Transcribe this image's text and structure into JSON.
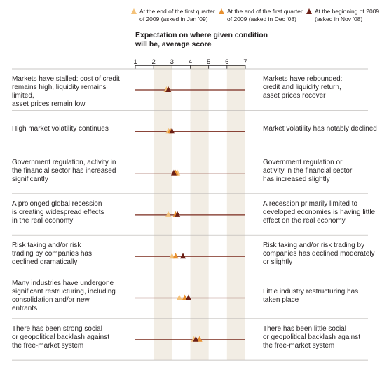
{
  "legend": [
    {
      "line1": "At the end of the first quarter",
      "line2": "of 2009 (asked in Jan '09)",
      "color": "#f4c27a"
    },
    {
      "line1": "At the end of the first quarter",
      "line2": "of 2009 (asked in Dec '08)",
      "color": "#e8902e"
    },
    {
      "line1": "At the beginning of 2009",
      "line2": "(asked in Nov '08)",
      "color": "#6b1f16"
    }
  ],
  "subtitle": "Expectation on where given condition will be, average score",
  "colors": {
    "line": "#7a2a1c",
    "band": "#f2ede4",
    "divider": "#b8b4b0"
  },
  "chart_data": {
    "type": "scatter",
    "title": "Expectation on where given condition will be, average score",
    "xlim": [
      1,
      7
    ],
    "x_ticks": [
      "1",
      "2",
      "3",
      "4",
      "5",
      "6",
      "7"
    ],
    "series_names": [
      "At the end of the first quarter of 2009 (asked in Jan '09)",
      "At the end of the first quarter of 2009 (asked in Dec '08)",
      "At the beginning of 2009 (asked in Nov '08)"
    ],
    "rows": [
      {
        "left": [
          "Markets have stalled: cost of credit",
          "remains high, liquidity remains limited,",
          "asset prices remain low"
        ],
        "right": [
          "Markets have rebounded:",
          "credit and liquidity return,",
          "asset prices recover"
        ],
        "values": [
          2.7,
          2.8,
          2.8
        ]
      },
      {
        "left": [
          "High market volatility continues"
        ],
        "right": [
          "Market volatility has notably declined"
        ],
        "values": [
          2.8,
          2.9,
          3.0
        ]
      },
      {
        "left": [
          "Government regulation, activity in",
          "the financial sector has increased",
          "significantly"
        ],
        "right": [
          "Government regulation or",
          "activity in the financial sector",
          "has increased slightly"
        ],
        "values": [
          3.3,
          3.2,
          3.1
        ]
      },
      {
        "left": [
          "A prolonged global recession",
          "is creating widespread effects",
          "in the real economy"
        ],
        "right": [
          "A recession primarily limited to",
          "developed economies is having little",
          "effect on the real economy"
        ],
        "values": [
          2.8,
          3.2,
          3.3
        ]
      },
      {
        "left": [
          "Risk taking and/or risk",
          "trading by companies has",
          "declined dramatically"
        ],
        "right": [
          "Risk taking and/or risk trading by",
          "companies has declined moderately",
          "or slightly"
        ],
        "values": [
          3.0,
          3.2,
          3.6
        ]
      },
      {
        "left": [
          "Many industries have undergone",
          "significant restructuring, including",
          "consolidation and/or new",
          "entrants"
        ],
        "right": [
          "Little industry restructuring has",
          "taken place"
        ],
        "values": [
          3.4,
          3.7,
          3.9
        ]
      },
      {
        "left": [
          "There has been strong social",
          "or geopolitical backlash against",
          "the free-market system"
        ],
        "right": [
          "There has been little social",
          "or geopolitical backlash against",
          "the free-market system"
        ],
        "values": [
          4.2,
          4.5,
          4.3
        ]
      }
    ]
  }
}
